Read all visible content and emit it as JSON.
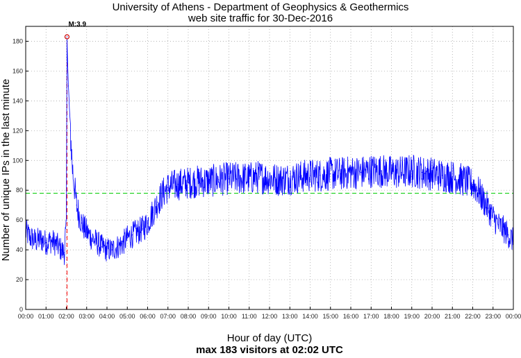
{
  "chart_data": {
    "type": "line",
    "title": "University of Athens - Department of Geophysics & Geothermics",
    "subtitle": "web site traffic for 30-Dec-2016",
    "xlabel": "Hour of day (UTC)",
    "ylabel": "Number of unique IPs in the last minute",
    "footer": "max 183 visitors at 02:02 UTC",
    "x_ticks": [
      "00:00",
      "01:00",
      "02:00",
      "03:00",
      "04:00",
      "05:00",
      "06:00",
      "07:00",
      "08:00",
      "09:00",
      "10:00",
      "11:00",
      "12:00",
      "13:00",
      "14:00",
      "15:00",
      "16:00",
      "17:00",
      "18:00",
      "19:00",
      "20:00",
      "21:00",
      "22:00",
      "23:00",
      "00:00"
    ],
    "y_ticks": [
      0,
      20,
      40,
      60,
      80,
      100,
      120,
      140,
      160,
      180
    ],
    "xlim": [
      0,
      24
    ],
    "ylim": [
      0,
      190
    ],
    "grid": true,
    "series": [
      {
        "color": "#0000ff",
        "x": [
          0,
          0.25,
          0.5,
          0.75,
          1,
          1.25,
          1.5,
          1.75,
          1.9,
          2.0,
          2.033,
          2.1,
          2.2,
          2.3,
          2.5,
          2.75,
          3,
          3.25,
          3.5,
          3.75,
          4,
          4.25,
          4.5,
          4.75,
          5,
          5.25,
          5.5,
          5.75,
          6,
          6.25,
          6.5,
          6.75,
          7,
          7.5,
          8,
          8.5,
          9,
          9.5,
          10,
          10.5,
          11,
          11.5,
          12,
          12.5,
          13,
          13.5,
          14,
          14.5,
          15,
          15.5,
          16,
          16.5,
          17,
          17.5,
          18,
          18.5,
          19,
          19.5,
          20,
          20.5,
          21,
          21.5,
          22,
          22.25,
          22.5,
          22.75,
          23,
          23.25,
          23.5,
          23.75,
          24
        ],
        "values": [
          52,
          48,
          46,
          47,
          45,
          46,
          44,
          40,
          38,
          60,
          183,
          150,
          120,
          95,
          70,
          58,
          52,
          48,
          45,
          42,
          40,
          40,
          42,
          44,
          48,
          50,
          52,
          54,
          58,
          65,
          72,
          78,
          82,
          84,
          85,
          86,
          86,
          87,
          88,
          88,
          88,
          89,
          88,
          87,
          88,
          89,
          90,
          90,
          91,
          91,
          92,
          92,
          93,
          93,
          92,
          92,
          93,
          92,
          91,
          90,
          89,
          87,
          84,
          80,
          74,
          68,
          62,
          57,
          54,
          50,
          46
        ]
      }
    ],
    "reference_lines": [
      {
        "orientation": "horizontal",
        "value": 78,
        "color": "#00cc00",
        "style": "dashed"
      },
      {
        "orientation": "vertical",
        "value": 2.033,
        "color": "#ff0000",
        "style": "dashed"
      }
    ],
    "annotation": {
      "label": "M:3.9",
      "x": 2.033,
      "y": 183
    }
  }
}
